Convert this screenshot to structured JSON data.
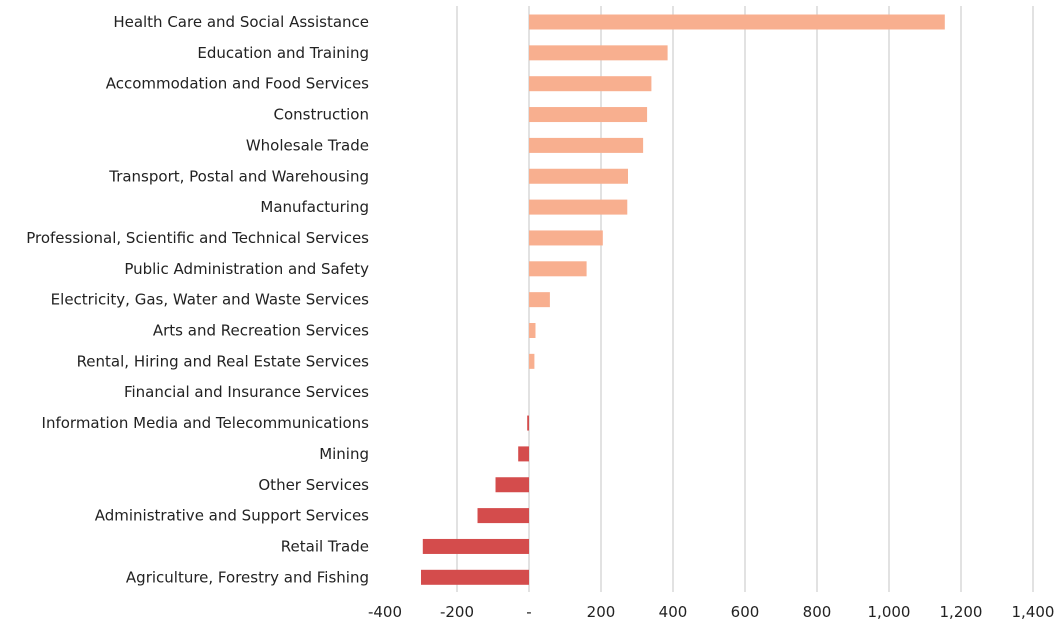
{
  "chart_data": {
    "type": "bar",
    "orientation": "horizontal",
    "title": "",
    "xlabel": "",
    "ylabel": "",
    "categories": [
      "Health Care and Social Assistance",
      "Education and Training",
      "Accommodation and Food Services",
      "Construction",
      "Wholesale Trade",
      "Transport, Postal and Warehousing",
      "Manufacturing",
      "Professional, Scientific and Technical Services",
      "Public Administration and Safety",
      "Electricity, Gas, Water and Waste Services",
      "Arts and Recreation Services",
      "Rental, Hiring and Real Estate Services",
      "Financial and Insurance Services",
      "Information Media and Telecommunications",
      "Mining",
      "Other Services",
      "Administrative and Support Services",
      "Retail Trade",
      "Agriculture, Forestry and Fishing"
    ],
    "values": [
      1155,
      385,
      340,
      328,
      317,
      275,
      273,
      205,
      160,
      58,
      18,
      15,
      0,
      -5,
      -30,
      -93,
      -143,
      -295,
      -300
    ],
    "xlim": [
      -400,
      1400
    ],
    "x_ticks": [
      -400,
      -200,
      0,
      200,
      400,
      600,
      800,
      1000,
      1200,
      1400
    ],
    "x_tick_labels": [
      "-400",
      "-200",
      "-",
      "200",
      "400",
      "600",
      "800",
      "1,000",
      "1,200",
      "1,400"
    ],
    "grid": "vertical",
    "legend": "none",
    "colors": {
      "positive": "#f8af8f",
      "negative": "#d44c4c",
      "grid": "#d9d9d9",
      "text": "#222222"
    }
  }
}
